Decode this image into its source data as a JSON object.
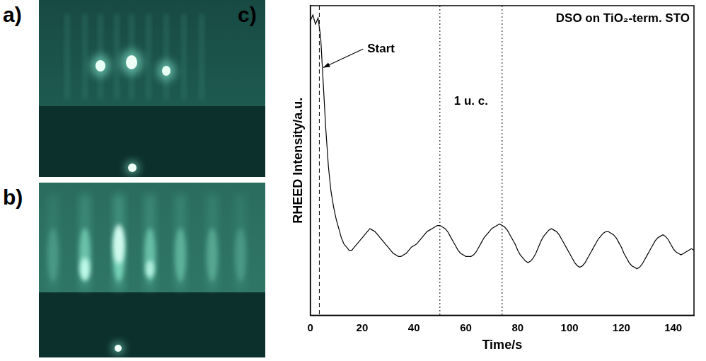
{
  "figure": {
    "panels": [
      "a)",
      "b)",
      "c)"
    ]
  },
  "chart_data": {
    "type": "line",
    "title": "DSO on TiO₂-term. STO",
    "x_label": "Time/s",
    "y_label": "RHEED Intensity/a.u.",
    "xlim": [
      0,
      148
    ],
    "xticks": [
      0,
      20,
      40,
      60,
      80,
      100,
      120,
      140
    ],
    "ylim": [
      0,
      100
    ],
    "tick_labels": "x",
    "grid": false,
    "color": "#000000",
    "x": [
      0,
      1,
      2,
      3,
      4,
      5,
      6,
      7,
      8,
      9,
      10,
      11,
      12,
      13,
      14,
      15,
      16,
      17,
      18,
      19,
      20,
      21,
      22,
      23,
      24,
      25,
      26,
      27,
      28,
      29,
      30,
      31,
      32,
      33,
      34,
      35,
      36,
      37,
      38,
      39,
      40,
      41,
      42,
      43,
      44,
      45,
      46,
      47,
      48,
      49,
      50,
      51,
      52,
      53,
      54,
      55,
      56,
      57,
      58,
      59,
      60,
      61,
      62,
      63,
      64,
      65,
      66,
      67,
      68,
      69,
      70,
      71,
      72,
      73,
      74,
      75,
      76,
      77,
      78,
      79,
      80,
      81,
      82,
      83,
      84,
      85,
      86,
      87,
      88,
      89,
      90,
      91,
      92,
      93,
      94,
      95,
      96,
      97,
      98,
      99,
      100,
      101,
      102,
      103,
      104,
      105,
      106,
      107,
      108,
      109,
      110,
      111,
      112,
      113,
      114,
      115,
      116,
      117,
      118,
      119,
      120,
      121,
      122,
      123,
      124,
      125,
      126,
      127,
      128,
      129,
      130,
      131,
      132,
      133,
      134,
      135,
      136,
      137,
      138,
      139,
      140,
      141,
      142,
      143,
      144,
      145,
      146,
      147,
      148
    ],
    "values": [
      95,
      97,
      94,
      96,
      90,
      75,
      60,
      48,
      40,
      35,
      31,
      28,
      25,
      23,
      22,
      21,
      21,
      22,
      23,
      24,
      25,
      26,
      27,
      28,
      27.5,
      27,
      26,
      25,
      24,
      23,
      22,
      21,
      20,
      19.5,
      19,
      19,
      19.5,
      20,
      21,
      22,
      22.5,
      23,
      24,
      25,
      26,
      27,
      27.5,
      28,
      28.5,
      29,
      29,
      28.5,
      28,
      27,
      25.5,
      24,
      22.5,
      21,
      20,
      19.5,
      19,
      19,
      19,
      19.5,
      20.5,
      22,
      23.5,
      25,
      26,
      27,
      28,
      28.5,
      29,
      29.5,
      29,
      28.5,
      27.5,
      26,
      24.5,
      23,
      21,
      19.5,
      18.5,
      17.5,
      17,
      17.5,
      18.5,
      20,
      22,
      24,
      25.5,
      26.5,
      27.5,
      28,
      27.5,
      27,
      26,
      24.5,
      23,
      21.5,
      20,
      18.5,
      17,
      16,
      15.5,
      16,
      17,
      18.5,
      20,
      21.5,
      23,
      24.5,
      25.5,
      26.5,
      27,
      27,
      26.5,
      26,
      25,
      23.5,
      22,
      20,
      18.5,
      17,
      16,
      15.5,
      15,
      15.5,
      16.5,
      18,
      19.5,
      21,
      22.5,
      24,
      25,
      25.5,
      26,
      25.5,
      24.5,
      23,
      21.5,
      20.5,
      20,
      19.5,
      20,
      20.5,
      21,
      21.5,
      21
    ],
    "vlines": [
      {
        "x": 3.5,
        "line_style": "dashed"
      },
      {
        "x": 50,
        "line_style": "dotted"
      },
      {
        "x": 74,
        "line_style": "dotted"
      }
    ],
    "annotations": [
      {
        "text": "Start",
        "x": 22,
        "y": 86,
        "arrow_to": [
          5,
          80
        ]
      },
      {
        "text": "1 u. c.",
        "x": 62,
        "y": 69
      }
    ]
  }
}
